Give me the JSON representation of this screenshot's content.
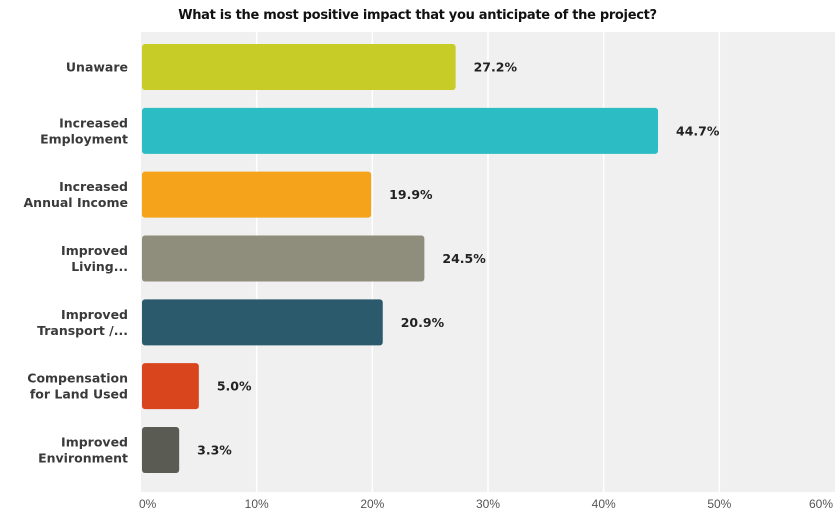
{
  "chart_data": {
    "type": "bar",
    "orientation": "horizontal",
    "title": "What is the most positive impact that you anticipate of the project?",
    "categories": [
      [
        "Unaware"
      ],
      [
        "Increased",
        "Employment"
      ],
      [
        "Increased",
        "Annual Income"
      ],
      [
        "Improved",
        "Living..."
      ],
      [
        "Improved",
        "Transport /..."
      ],
      [
        "Compensation",
        "for Land Used"
      ],
      [
        "Improved",
        "Environment"
      ]
    ],
    "values": [
      27.2,
      44.7,
      19.9,
      24.5,
      20.9,
      5.0,
      3.3
    ],
    "value_labels": [
      "27.2%",
      "44.7%",
      "19.9%",
      "24.5%",
      "20.9%",
      "5.0%",
      "3.3%"
    ],
    "colors": [
      "#c7cd26",
      "#2cbcc4",
      "#f5a31b",
      "#8f8e7d",
      "#2a5a6c",
      "#d9461d",
      "#5a5b52"
    ],
    "xlim": [
      0,
      60
    ],
    "xticks": [
      0,
      10,
      20,
      30,
      40,
      50,
      60
    ],
    "xtick_labels": [
      "0%",
      "10%",
      "20%",
      "30%",
      "40%",
      "50%",
      "60%"
    ],
    "grid": true,
    "xlabel": "",
    "ylabel": ""
  }
}
